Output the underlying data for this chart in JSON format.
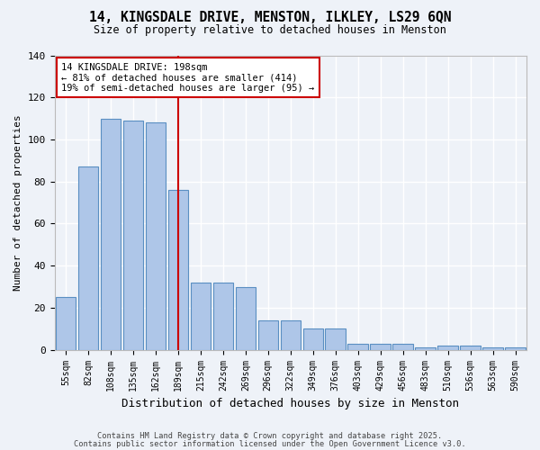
{
  "title": "14, KINGSDALE DRIVE, MENSTON, ILKLEY, LS29 6QN",
  "subtitle": "Size of property relative to detached houses in Menston",
  "xlabel": "Distribution of detached houses by size in Menston",
  "ylabel": "Number of detached properties",
  "bar_values": [
    25,
    87,
    110,
    109,
    108,
    76,
    32,
    32,
    30,
    14,
    14,
    10,
    10,
    3,
    3,
    3,
    1,
    2,
    2,
    1,
    1
  ],
  "categories": [
    "55sqm",
    "82sqm",
    "108sqm",
    "135sqm",
    "162sqm",
    "189sqm",
    "215sqm",
    "242sqm",
    "269sqm",
    "296sqm",
    "322sqm",
    "349sqm",
    "376sqm",
    "403sqm",
    "429sqm",
    "456sqm",
    "483sqm",
    "510sqm",
    "536sqm",
    "563sqm",
    "590sqm"
  ],
  "bar_color": "#aec6e8",
  "bar_edge_color": "#5a8fc2",
  "vline_x": 5,
  "vline_color": "#cc0000",
  "annotation_title": "14 KINGSDALE DRIVE: 198sqm",
  "annotation_line1": "← 81% of detached houses are smaller (414)",
  "annotation_line2": "19% of semi-detached houses are larger (95) →",
  "annotation_box_color": "#cc0000",
  "ylim": [
    0,
    140
  ],
  "yticks": [
    0,
    20,
    40,
    60,
    80,
    100,
    120,
    140
  ],
  "footer_line1": "Contains HM Land Registry data © Crown copyright and database right 2025.",
  "footer_line2": "Contains public sector information licensed under the Open Government Licence v3.0.",
  "bg_color": "#eef2f8",
  "plot_bg_color": "#eef2f8"
}
